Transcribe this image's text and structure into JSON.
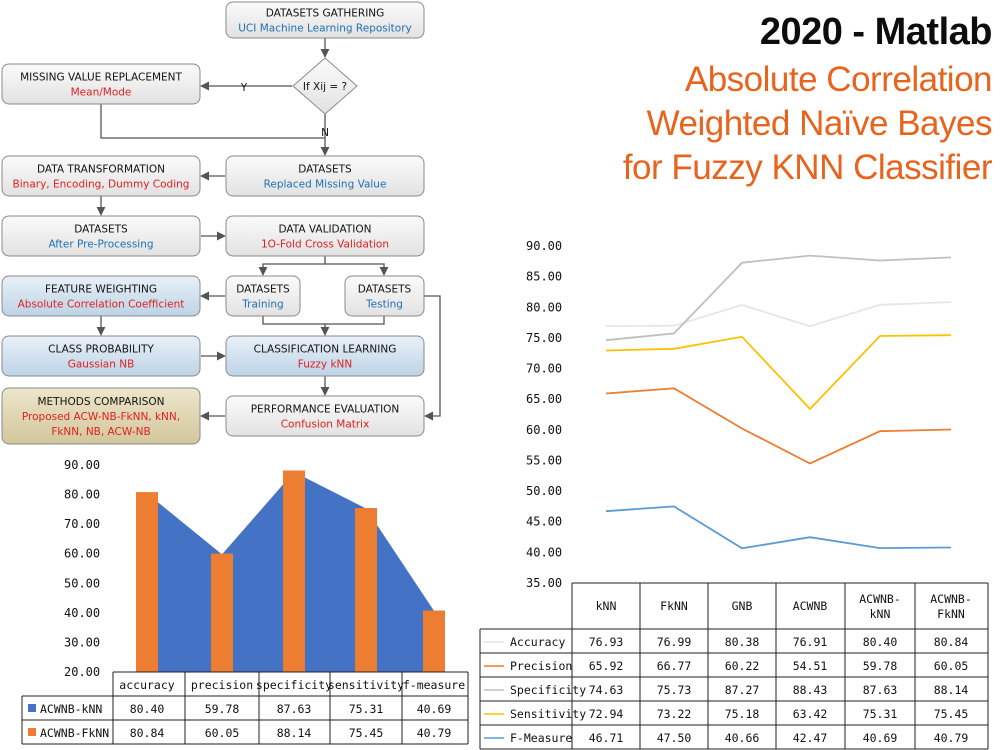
{
  "title": {
    "line1": "2020 - Matlab",
    "line2": "Absolute Correlation",
    "line3": "Weighted Naïve Bayes",
    "line4": "for Fuzzy KNN Classifier",
    "line1_color": "#0d0d0d",
    "accent_color": "#e8631c"
  },
  "flowchart": {
    "boxes": [
      {
        "id": "datasets-gathering",
        "title": "DATASETS GATHERING",
        "sub": "UCI Machine Learning Repository",
        "sub_color": "#1f6fb5"
      },
      {
        "id": "missing-value-replacement",
        "title": "MISSING VALUE REPLACEMENT",
        "sub": "Mean/Mode",
        "sub_color": "#e02020"
      },
      {
        "id": "decision",
        "title": "If Xij = ?",
        "sub": ""
      },
      {
        "id": "data-transformation",
        "title": "DATA TRANSFORMATION",
        "sub": "Binary, Encoding, Dummy Coding",
        "sub_color": "#e02020"
      },
      {
        "id": "datasets-replaced",
        "title": "DATASETS",
        "sub": "Replaced Missing Value",
        "sub_color": "#1f6fb5"
      },
      {
        "id": "datasets-preprocessed",
        "title": "DATASETS",
        "sub": "After Pre-Processing",
        "sub_color": "#1f6fb5"
      },
      {
        "id": "data-validation",
        "title": "DATA VALIDATION",
        "sub": "1O-Fold Cross Validation",
        "sub_color": "#e02020"
      },
      {
        "id": "feature-weighting",
        "title": "FEATURE WEIGHTING",
        "sub": "Absolute Correlation Coefficient",
        "sub_color": "#e02020"
      },
      {
        "id": "datasets-training",
        "title": "DATASETS",
        "sub": "Training",
        "sub_color": "#1f6fb5"
      },
      {
        "id": "datasets-testing",
        "title": "DATASETS",
        "sub": "Testing",
        "sub_color": "#1f6fb5"
      },
      {
        "id": "class-probability",
        "title": "CLASS PROBABILITY",
        "sub": "Gaussian NB",
        "sub_color": "#e02020"
      },
      {
        "id": "classification-learning",
        "title": "CLASSIFICATION LEARNING",
        "sub": "Fuzzy kNN",
        "sub_color": "#e02020"
      },
      {
        "id": "methods-comparison",
        "title": "METHODS COMPARISON",
        "sub": "Proposed ACW-NB-FkNN, kNN,",
        "sub2": "FkNN, NB, ACW-NB",
        "sub_color": "#e02020"
      },
      {
        "id": "performance-evaluation",
        "title": "PERFORMANCE EVALUATION",
        "sub": "Confusion Matrix",
        "sub_color": "#e02020"
      }
    ],
    "yes_label": "Y",
    "no_label": "N"
  },
  "chart_data": [
    {
      "type": "bar",
      "title": "",
      "categories": [
        "accuracy",
        "precision",
        "specificity",
        "sensitivity",
        "f-measure"
      ],
      "series": [
        {
          "name": "ACWNB-kNN",
          "values": [
            80.4,
            59.78,
            87.63,
            75.31,
            40.69
          ],
          "color": "#4472c4",
          "style": "area"
        },
        {
          "name": "ACWNB-FkNN",
          "values": [
            80.84,
            60.05,
            88.14,
            75.45,
            40.79
          ],
          "color": "#ed7d31",
          "style": "bar"
        }
      ],
      "ylim": [
        20,
        90
      ],
      "yticks": [
        "90.00",
        "80.00",
        "70.00",
        "60.00",
        "50.00",
        "40.00",
        "30.00",
        "20.00"
      ],
      "table": {
        "header": [
          "accuracy",
          "precision",
          "specificity",
          "sensitivity",
          "f-measure"
        ],
        "rows": [
          {
            "label": "ACWNB-kNN",
            "values": [
              "80.40",
              "59.78",
              "87.63",
              "75.31",
              "40.69"
            ]
          },
          {
            "label": "ACWNB-FkNN",
            "values": [
              "80.84",
              "60.05",
              "88.14",
              "75.45",
              "40.79"
            ]
          }
        ]
      }
    },
    {
      "type": "line",
      "title": "",
      "categories": [
        "kNN",
        "FkNN",
        "GNB",
        "ACWNB",
        "ACWNB-\nkNN",
        "ACWNB-\nFkNN"
      ],
      "series": [
        {
          "name": "Accuracy",
          "values": [
            76.93,
            76.99,
            80.38,
            76.91,
            80.4,
            80.84
          ],
          "color": "#e6e6e6"
        },
        {
          "name": "Precision",
          "values": [
            65.92,
            66.77,
            60.22,
            54.51,
            59.78,
            60.05
          ],
          "color": "#ed7d31"
        },
        {
          "name": "Specificity",
          "values": [
            74.63,
            75.73,
            87.27,
            88.43,
            87.63,
            88.14
          ],
          "color": "#bfbfbf"
        },
        {
          "name": "Sensitivity",
          "values": [
            72.94,
            73.22,
            75.18,
            63.42,
            75.31,
            75.45
          ],
          "color": "#ffc000"
        },
        {
          "name": "F-Measure",
          "values": [
            46.71,
            47.5,
            40.66,
            42.47,
            40.69,
            40.79
          ],
          "color": "#5b9bd5"
        }
      ],
      "ylim": [
        35,
        90
      ],
      "yticks": [
        "90.00",
        "85.00",
        "80.00",
        "75.00",
        "70.00",
        "65.00",
        "60.00",
        "55.00",
        "50.00",
        "45.00",
        "40.00",
        "35.00"
      ],
      "table": {
        "header": [
          "kNN",
          "FkNN",
          "GNB",
          "ACWNB",
          "ACWNB-\nkNN",
          "ACWNB-\nFkNN"
        ],
        "rows": [
          {
            "label": "Accuracy",
            "values": [
              "76.93",
              "76.99",
              "80.38",
              "76.91",
              "80.40",
              "80.84"
            ]
          },
          {
            "label": "Precision",
            "values": [
              "65.92",
              "66.77",
              "60.22",
              "54.51",
              "59.78",
              "60.05"
            ]
          },
          {
            "label": "Specificity",
            "values": [
              "74.63",
              "75.73",
              "87.27",
              "88.43",
              "87.63",
              "88.14"
            ]
          },
          {
            "label": "Sensitivity",
            "values": [
              "72.94",
              "73.22",
              "75.18",
              "63.42",
              "75.31",
              "75.45"
            ]
          },
          {
            "label": "F-Measure",
            "values": [
              "46.71",
              "47.50",
              "40.66",
              "42.47",
              "40.69",
              "40.79"
            ]
          }
        ]
      }
    }
  ]
}
